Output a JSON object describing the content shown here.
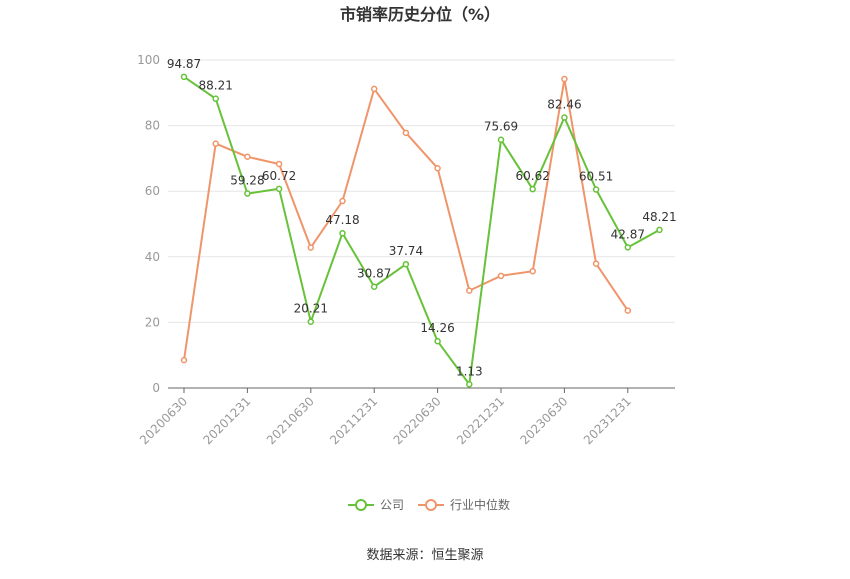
{
  "chart_data": {
    "type": "line",
    "title": "市销率历史分位（%）",
    "ylim": [
      0,
      100
    ],
    "yticks": [
      0,
      20,
      40,
      60,
      80,
      100
    ],
    "x": [
      "20200630",
      "20200930",
      "20201231",
      "20210331",
      "20210630",
      "20210930",
      "20211231",
      "20220331",
      "20220630",
      "20220930",
      "20221231",
      "20230331",
      "20230630",
      "20230930",
      "20231231",
      "20240331"
    ],
    "xtick_labels": [
      "20200630",
      "20201231",
      "20210630",
      "20211231",
      "20220630",
      "20221231",
      "20230630",
      "20231231"
    ],
    "series": [
      {
        "name": "公司",
        "color": "#67c23a",
        "values": [
          94.87,
          88.21,
          59.28,
          60.72,
          20.21,
          47.18,
          30.87,
          37.74,
          14.26,
          1.13,
          75.69,
          60.62,
          82.46,
          60.51,
          42.87,
          48.21
        ],
        "show_labels": true
      },
      {
        "name": "行业中位数",
        "color": "#f0956a",
        "values": [
          8.5,
          74.5,
          70.5,
          68.3,
          42.8,
          57.0,
          91.2,
          77.8,
          67.0,
          29.7,
          34.2,
          35.6,
          94.2,
          37.9,
          23.6,
          null
        ],
        "show_labels": false
      }
    ],
    "grid": true,
    "legend": "bottom-center"
  },
  "source": "数据来源：恒生聚源"
}
